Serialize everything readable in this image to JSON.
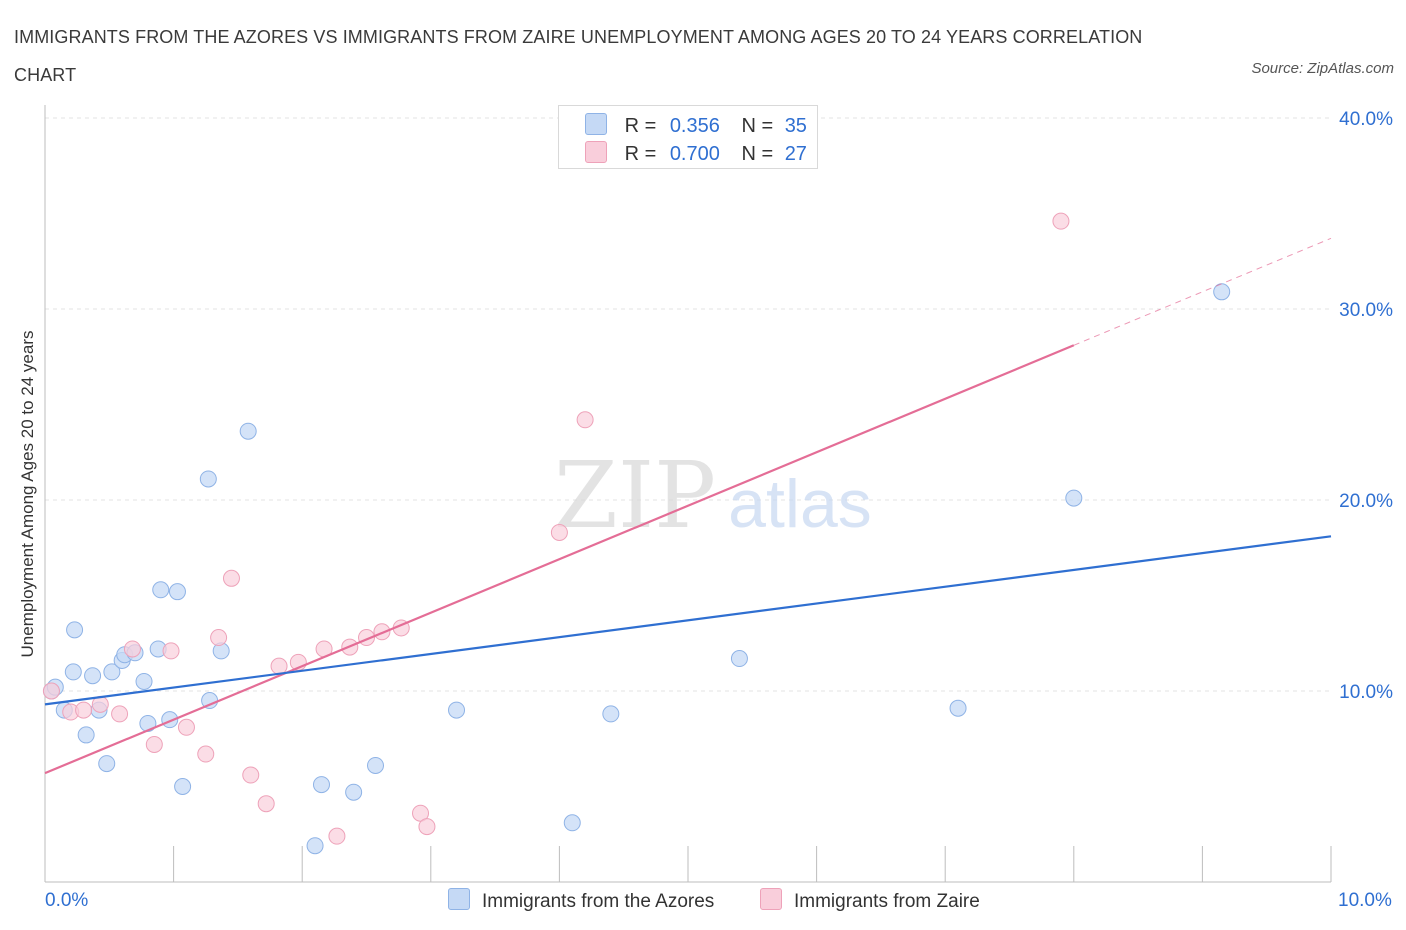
{
  "title": "IMMIGRANTS FROM THE AZORES VS IMMIGRANTS FROM ZAIRE UNEMPLOYMENT AMONG AGES 20 TO 24 YEARS CORRELATION CHART",
  "source": "Source: ZipAtlas.com",
  "watermark": {
    "zip": "ZIP",
    "atlas": "atlas"
  },
  "legend_top": {
    "rows": [
      {
        "r_label": "R =",
        "r_value": "0.356",
        "n_label": "N =",
        "n_value": "35"
      },
      {
        "r_label": "R =",
        "r_value": "0.700",
        "n_label": "N =",
        "n_value": "27"
      }
    ]
  },
  "colors": {
    "azores_fill": "#c5d9f5",
    "azores_stroke": "#8fb3e6",
    "azores_line": "#2f6fd1",
    "zaire_fill": "#f9cedb",
    "zaire_stroke": "#eea2b9",
    "zaire_line": "#e46d96",
    "grid": "#e3e3e3",
    "axis_label": "#2f6fd1"
  },
  "chart_data": {
    "type": "scatter",
    "title": "IMMIGRANTS FROM THE AZORES VS IMMIGRANTS FROM ZAIRE UNEMPLOYMENT AMONG AGES 20 TO 24 YEARS CORRELATION CHART",
    "xlabel": "",
    "ylabel": "Unemployment Among Ages 20 to 24 years",
    "xlim": [
      0,
      10
    ],
    "ylim": [
      0,
      40
    ],
    "x_tick_labels": [
      "0.0%",
      "10.0%"
    ],
    "y_ticks": [
      10,
      20,
      30,
      40
    ],
    "y_tick_labels": [
      "10.0%",
      "20.0%",
      "30.0%",
      "40.0%"
    ],
    "grid": true,
    "series": [
      {
        "name": "Immigrants from the Azores",
        "R": 0.356,
        "N": 35,
        "points": [
          [
            0.05,
            10.0
          ],
          [
            0.08,
            10.2
          ],
          [
            0.15,
            9.0
          ],
          [
            0.23,
            13.2
          ],
          [
            0.22,
            11.0
          ],
          [
            0.32,
            7.7
          ],
          [
            0.37,
            10.8
          ],
          [
            0.42,
            9.0
          ],
          [
            0.48,
            6.2
          ],
          [
            0.52,
            11.0
          ],
          [
            0.6,
            11.6
          ],
          [
            0.62,
            11.9
          ],
          [
            0.7,
            12.0
          ],
          [
            0.77,
            10.5
          ],
          [
            0.8,
            8.3
          ],
          [
            0.88,
            12.2
          ],
          [
            0.9,
            15.3
          ],
          [
            0.97,
            8.5
          ],
          [
            1.03,
            15.2
          ],
          [
            1.07,
            5.0
          ],
          [
            1.27,
            21.1
          ],
          [
            1.28,
            9.5
          ],
          [
            1.37,
            12.1
          ],
          [
            1.58,
            23.6
          ],
          [
            2.1,
            1.9
          ],
          [
            2.15,
            5.1
          ],
          [
            2.4,
            4.7
          ],
          [
            2.57,
            6.1
          ],
          [
            3.2,
            9.0
          ],
          [
            4.1,
            3.1
          ],
          [
            4.4,
            8.8
          ],
          [
            5.4,
            11.7
          ],
          [
            7.1,
            9.1
          ],
          [
            8.0,
            20.1
          ],
          [
            9.15,
            30.9
          ]
        ],
        "trend": {
          "x": [
            0,
            10
          ],
          "y": [
            9.3,
            18.1
          ]
        }
      },
      {
        "name": "Immigrants from Zaire",
        "R": 0.7,
        "N": 27,
        "points": [
          [
            0.05,
            10.0
          ],
          [
            0.2,
            8.9
          ],
          [
            0.3,
            9.0
          ],
          [
            0.43,
            9.3
          ],
          [
            0.58,
            8.8
          ],
          [
            0.68,
            12.2
          ],
          [
            0.85,
            7.2
          ],
          [
            0.98,
            12.1
          ],
          [
            1.1,
            8.1
          ],
          [
            1.25,
            6.7
          ],
          [
            1.35,
            12.8
          ],
          [
            1.45,
            15.9
          ],
          [
            1.6,
            5.6
          ],
          [
            1.72,
            4.1
          ],
          [
            1.82,
            11.3
          ],
          [
            1.97,
            11.5
          ],
          [
            2.17,
            12.2
          ],
          [
            2.27,
            2.4
          ],
          [
            2.37,
            12.3
          ],
          [
            2.5,
            12.8
          ],
          [
            2.62,
            13.1
          ],
          [
            2.77,
            13.3
          ],
          [
            2.92,
            3.6
          ],
          [
            2.97,
            2.9
          ],
          [
            4.0,
            18.3
          ],
          [
            4.2,
            24.2
          ],
          [
            7.9,
            34.6
          ]
        ],
        "trend": {
          "x": [
            0,
            8.0
          ],
          "y": [
            5.7,
            28.1
          ]
        },
        "trend_extension": {
          "x": [
            8.0,
            10.0
          ],
          "y": [
            28.1,
            33.7
          ]
        }
      }
    ]
  },
  "bottom_legend": [
    {
      "label": "Immigrants from the Azores"
    },
    {
      "label": "Immigrants from Zaire"
    }
  ]
}
